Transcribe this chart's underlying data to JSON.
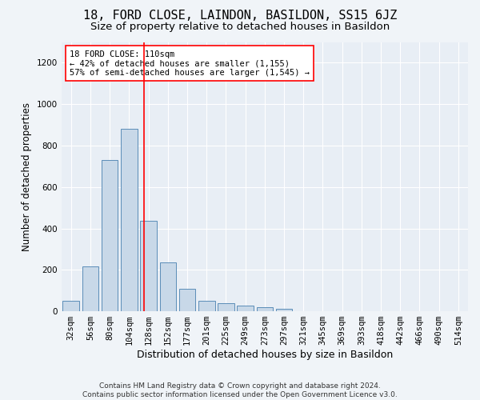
{
  "title": "18, FORD CLOSE, LAINDON, BASILDON, SS15 6JZ",
  "subtitle": "Size of property relative to detached houses in Basildon",
  "xlabel": "Distribution of detached houses by size in Basildon",
  "ylabel": "Number of detached properties",
  "categories": [
    "32sqm",
    "56sqm",
    "80sqm",
    "104sqm",
    "128sqm",
    "152sqm",
    "177sqm",
    "201sqm",
    "225sqm",
    "249sqm",
    "273sqm",
    "297sqm",
    "321sqm",
    "345sqm",
    "369sqm",
    "393sqm",
    "418sqm",
    "442sqm",
    "466sqm",
    "490sqm",
    "514sqm"
  ],
  "values": [
    50,
    215,
    730,
    880,
    435,
    235,
    110,
    50,
    40,
    27,
    20,
    10,
    0,
    0,
    0,
    0,
    0,
    0,
    0,
    0,
    0
  ],
  "bar_color": "#c8d8e8",
  "bar_edge_color": "#5b8db8",
  "vline_x": 3.75,
  "vline_color": "red",
  "annotation_line1": "18 FORD CLOSE: 110sqm",
  "annotation_line2": "← 42% of detached houses are smaller (1,155)",
  "annotation_line3": "57% of semi-detached houses are larger (1,545) →",
  "annotation_box_color": "white",
  "annotation_box_edge": "red",
  "ylim": [
    0,
    1300
  ],
  "yticks": [
    0,
    200,
    400,
    600,
    800,
    1000,
    1200
  ],
  "footer_line1": "Contains HM Land Registry data © Crown copyright and database right 2024.",
  "footer_line2": "Contains public sector information licensed under the Open Government Licence v3.0.",
  "bg_color": "#f0f4f8",
  "plot_bg_color": "#e8eef5",
  "title_fontsize": 11,
  "subtitle_fontsize": 9.5,
  "xlabel_fontsize": 9,
  "ylabel_fontsize": 8.5,
  "tick_fontsize": 7.5,
  "footer_fontsize": 6.5,
  "annotation_fontsize": 7.5
}
